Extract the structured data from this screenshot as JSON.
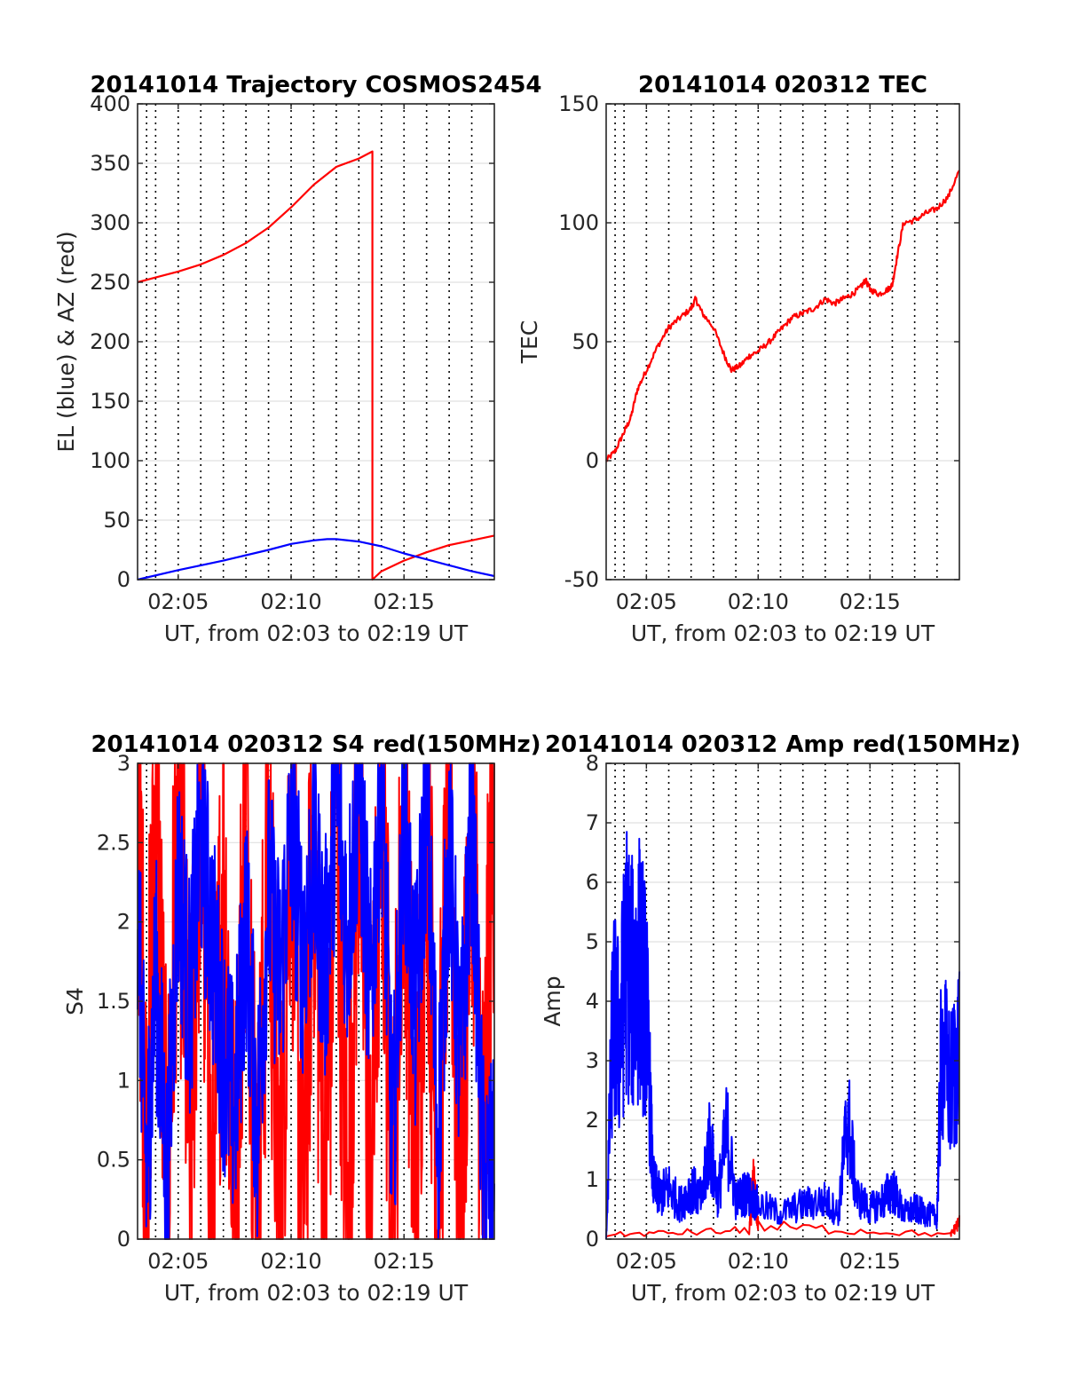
{
  "chart_data": [
    {
      "type": "line",
      "title": "20141014 Trajectory COSMOS2454",
      "xlabel": "UT, from 02:03 to 02:19 UT",
      "ylabel": "EL (blue) & AZ (red)",
      "xlim": [
        3.2,
        19.0
      ],
      "ylim": [
        0,
        400
      ],
      "xticks": [
        5,
        10,
        15
      ],
      "xtick_labels": [
        "02:05",
        "02:10",
        "02:15"
      ],
      "yticks": [
        0,
        50,
        100,
        150,
        200,
        250,
        300,
        350,
        400
      ],
      "ytick_labels": [
        "0",
        "50",
        "100",
        "150",
        "200",
        "250",
        "300",
        "350",
        "400"
      ],
      "minor_x_gridlines": [
        3.2,
        4.0,
        5.0,
        6.0,
        7.0,
        8.0,
        9.0,
        10.0,
        11.0,
        12.0,
        13.0,
        14.0,
        15.0,
        16.0,
        17.0,
        18.0
      ],
      "grid": true,
      "series": [
        {
          "color": "#ff0000",
          "x": [
            3.2,
            4,
            5,
            6,
            7,
            8,
            9,
            10,
            11,
            12,
            13,
            13.6,
            13.6,
            14,
            15,
            16,
            17,
            18,
            19
          ],
          "values": [
            250,
            254,
            259,
            265,
            273,
            283,
            296,
            313,
            332,
            347,
            354,
            360,
            0,
            7,
            16,
            23,
            29,
            33,
            37
          ]
        },
        {
          "color": "#0000ff",
          "x": [
            3.2,
            5,
            7,
            9,
            10,
            11,
            11.6,
            12,
            13,
            14,
            15,
            16,
            17,
            18,
            19
          ],
          "values": [
            0,
            8,
            16,
            25,
            30,
            33,
            34,
            34,
            32,
            28,
            22,
            17,
            12,
            7,
            3
          ]
        }
      ]
    },
    {
      "type": "line",
      "title": "20141014 020312 TEC",
      "xlabel": "UT, from 02:03 to 02:19 UT",
      "ylabel": "TEC",
      "xlim": [
        3.2,
        19.0
      ],
      "ylim": [
        -50,
        150
      ],
      "xticks": [
        5,
        10,
        15
      ],
      "xtick_labels": [
        "02:05",
        "02:10",
        "02:15"
      ],
      "yticks": [
        -50,
        0,
        50,
        100,
        150
      ],
      "ytick_labels": [
        "-50",
        "0",
        "50",
        "100",
        "150"
      ],
      "grid": true,
      "series": [
        {
          "color": "#ff0000",
          "x": [
            3.2,
            3.6,
            4.0,
            4.3,
            4.6,
            5.0,
            5.5,
            6.0,
            6.5,
            7.0,
            7.2,
            7.5,
            8.0,
            8.5,
            8.8,
            9.2,
            9.6,
            10.0,
            10.5,
            11.0,
            11.5,
            12.0,
            12.5,
            13.0,
            13.4,
            13.8,
            14.2,
            14.6,
            14.8,
            15.0,
            15.4,
            15.8,
            16.0,
            16.2,
            16.5,
            17.0,
            17.5,
            18.0,
            18.5,
            19.0
          ],
          "values": [
            0,
            4,
            12,
            18,
            30,
            38,
            48,
            56,
            60,
            64,
            68,
            62,
            56,
            44,
            38,
            40,
            44,
            46,
            50,
            55,
            60,
            62,
            64,
            68,
            66,
            68,
            70,
            73,
            76,
            72,
            70,
            72,
            74,
            85,
            100,
            101,
            104,
            106,
            111,
            122
          ]
        }
      ]
    },
    {
      "type": "line",
      "title": "20141014 020312 S4 red(150MHz)",
      "xlabel": "UT, from 02:03 to 02:19 UT",
      "ylabel": "S4",
      "xlim": [
        3.2,
        19.0
      ],
      "ylim": [
        0,
        3
      ],
      "xticks": [
        5,
        10,
        15
      ],
      "xtick_labels": [
        "02:05",
        "02:10",
        "02:15"
      ],
      "yticks": [
        0,
        0.5,
        1,
        1.5,
        2,
        2.5,
        3
      ],
      "ytick_labels": [
        "0",
        "0.5",
        "1",
        "1.5",
        "2",
        "2.5",
        "3"
      ],
      "grid": true,
      "series": [
        {
          "color": "#ff0000",
          "x": [
            3.2,
            3.6,
            4.0,
            4.5,
            5.0,
            5.5,
            6.0,
            6.5,
            7.0,
            7.5,
            8.0,
            8.5,
            9.0,
            9.5,
            10.0,
            10.5,
            11.0,
            11.5,
            12.0,
            12.5,
            13.0,
            13.5,
            14.0,
            14.5,
            15.0,
            15.5,
            16.0,
            16.5,
            17.0,
            17.5,
            18.0,
            18.5,
            19.0
          ],
          "values": [
            3,
            0.4,
            3,
            0,
            3,
            0.5,
            3,
            0,
            2.5,
            0,
            3,
            0,
            2.6,
            0,
            3,
            0,
            2.7,
            0,
            3,
            0,
            3,
            0,
            3,
            0,
            3,
            0,
            3,
            0,
            3,
            0,
            3,
            0.3,
            3
          ]
        },
        {
          "color": "#0000ff",
          "x": [
            3.2,
            3.6,
            4.0,
            4.5,
            5.0,
            5.5,
            6.0,
            6.5,
            7.0,
            7.5,
            8.0,
            8.5,
            9.0,
            9.5,
            10.0,
            10.5,
            11.0,
            11.5,
            12.0,
            12.5,
            13.0,
            13.5,
            14.0,
            14.5,
            15.0,
            15.5,
            16.0,
            16.5,
            17.0,
            17.5,
            18.0,
            18.5,
            19.0
          ],
          "values": [
            2.1,
            0.4,
            1.7,
            0.35,
            2.3,
            1.5,
            2.5,
            1.9,
            1.2,
            0.8,
            2.0,
            0.7,
            2.2,
            1.6,
            2.6,
            1.8,
            2.4,
            1.7,
            2.8,
            1.9,
            2.9,
            1.5,
            3.0,
            0.5,
            2.7,
            1.4,
            2.8,
            0.6,
            2.5,
            1.0,
            2.7,
            0.4,
            0.35
          ]
        }
      ]
    },
    {
      "type": "line",
      "title": "20141014 020312 Amp red(150MHz)",
      "xlabel": "UT, from 02:03 to 02:19 UT",
      "ylabel": "Amp",
      "xlim": [
        3.2,
        19.0
      ],
      "ylim": [
        0,
        8
      ],
      "xticks": [
        5,
        10,
        15
      ],
      "xtick_labels": [
        "02:05",
        "02:10",
        "02:15"
      ],
      "yticks": [
        0,
        1,
        2,
        3,
        4,
        5,
        6,
        7,
        8
      ],
      "ytick_labels": [
        "0",
        "1",
        "2",
        "3",
        "4",
        "5",
        "6",
        "7",
        "8"
      ],
      "grid": true,
      "series": [
        {
          "color": "#ff0000",
          "x": [
            3.2,
            9.6,
            9.8,
            10.0,
            18.6,
            19.0
          ],
          "values": [
            0.1,
            0.2,
            1.3,
            0.3,
            0.1,
            0.4
          ]
        },
        {
          "color": "#0000ff",
          "x": [
            3.2,
            3.5,
            3.8,
            4.1,
            4.4,
            4.7,
            5.0,
            5.3,
            5.6,
            6.0,
            6.5,
            7.0,
            7.5,
            7.8,
            8.2,
            8.6,
            9.0,
            9.5,
            10.0,
            11.0,
            12.0,
            13.0,
            13.6,
            14.0,
            14.4,
            15.0,
            15.6,
            16.0,
            16.5,
            17.0,
            17.5,
            18.0,
            18.2,
            18.6,
            19.0
          ],
          "values": [
            0,
            5.2,
            4.6,
            6.5,
            5.8,
            6.3,
            5.4,
            1.3,
            1.0,
            1.2,
            0.8,
            1.2,
            0.9,
            2.3,
            1.0,
            2.5,
            0.9,
            1.1,
            0.8,
            0.6,
            0.8,
            0.9,
            0.6,
            2.9,
            1.0,
            0.7,
            0.9,
            1.2,
            0.6,
            0.7,
            0.6,
            0.5,
            4.5,
            3.5,
            4.5
          ]
        }
      ]
    }
  ]
}
